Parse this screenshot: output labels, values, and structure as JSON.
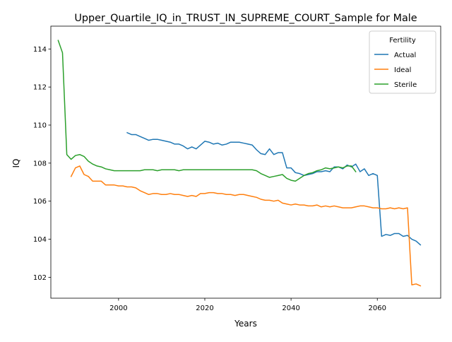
{
  "chart_data": {
    "type": "line",
    "title": "Upper_Quartile_IQ_in_TRUST_IN_SUPREME_COURT_Sample for Male",
    "xlabel": "Years",
    "ylabel": "IQ",
    "xlim": [
      1984.3,
      2074.7
    ],
    "ylim": [
      100.9,
      115.2
    ],
    "xticks": [
      2000,
      2020,
      2040,
      2060
    ],
    "yticks": [
      102,
      104,
      106,
      108,
      110,
      112,
      114
    ],
    "grid": false,
    "legend": {
      "title": "Fertility",
      "placement": "top-right"
    },
    "series": [
      {
        "name": "Actual",
        "color": "#1f77b4",
        "x": [
          2002,
          2003,
          2004,
          2005,
          2006,
          2007,
          2008,
          2009,
          2010,
          2011,
          2012,
          2013,
          2014,
          2015,
          2016,
          2017,
          2018,
          2019,
          2020,
          2021,
          2022,
          2023,
          2024,
          2025,
          2026,
          2027,
          2028,
          2029,
          2030,
          2031,
          2032,
          2033,
          2034,
          2035,
          2036,
          2037,
          2038,
          2039,
          2040,
          2041,
          2042,
          2043,
          2044,
          2045,
          2046,
          2047,
          2048,
          2049,
          2050,
          2051,
          2052,
          2053,
          2054,
          2055,
          2056,
          2057,
          2058,
          2059,
          2060,
          2061,
          2062,
          2063,
          2064,
          2065,
          2066,
          2067,
          2068,
          2069,
          2070
        ],
        "values": [
          109.6,
          109.5,
          109.5,
          109.4,
          109.3,
          109.2,
          109.25,
          109.25,
          109.2,
          109.15,
          109.1,
          109.0,
          109.0,
          108.9,
          108.75,
          108.85,
          108.75,
          108.95,
          109.15,
          109.1,
          109.0,
          109.05,
          108.95,
          109.0,
          109.1,
          109.1,
          109.1,
          109.05,
          109.0,
          108.95,
          108.7,
          108.5,
          108.45,
          108.75,
          108.45,
          108.55,
          108.55,
          107.75,
          107.75,
          107.5,
          107.45,
          107.35,
          107.4,
          107.45,
          107.55,
          107.55,
          107.6,
          107.55,
          107.8,
          107.8,
          107.7,
          107.9,
          107.8,
          107.95,
          107.55,
          107.7,
          107.35,
          107.45,
          107.35,
          104.15,
          104.25,
          104.2,
          104.3,
          104.3,
          104.15,
          104.2,
          104.0,
          103.9,
          103.7
        ]
      },
      {
        "name": "Ideal",
        "color": "#ff7f0e",
        "x": [
          1989,
          1990,
          1991,
          1992,
          1993,
          1994,
          1995,
          1996,
          1997,
          1998,
          1999,
          2000,
          2001,
          2002,
          2003,
          2004,
          2005,
          2006,
          2007,
          2008,
          2009,
          2010,
          2011,
          2012,
          2013,
          2014,
          2015,
          2016,
          2017,
          2018,
          2019,
          2020,
          2021,
          2022,
          2023,
          2024,
          2025,
          2026,
          2027,
          2028,
          2029,
          2030,
          2031,
          2032,
          2033,
          2034,
          2035,
          2036,
          2037,
          2038,
          2039,
          2040,
          2041,
          2042,
          2043,
          2044,
          2045,
          2046,
          2047,
          2048,
          2049,
          2050,
          2051,
          2052,
          2053,
          2054,
          2055,
          2056,
          2057,
          2058,
          2059,
          2060,
          2061,
          2062,
          2063,
          2064,
          2065,
          2066,
          2067,
          2068,
          2069,
          2070
        ],
        "values": [
          107.3,
          107.75,
          107.85,
          107.4,
          107.3,
          107.05,
          107.05,
          107.05,
          106.85,
          106.85,
          106.85,
          106.8,
          106.8,
          106.75,
          106.75,
          106.7,
          106.55,
          106.45,
          106.35,
          106.4,
          106.4,
          106.35,
          106.35,
          106.4,
          106.35,
          106.35,
          106.3,
          106.25,
          106.3,
          106.25,
          106.4,
          106.4,
          106.45,
          106.45,
          106.4,
          106.4,
          106.35,
          106.35,
          106.3,
          106.35,
          106.35,
          106.3,
          106.25,
          106.2,
          106.1,
          106.05,
          106.05,
          106.0,
          106.05,
          105.9,
          105.85,
          105.8,
          105.85,
          105.8,
          105.8,
          105.75,
          105.75,
          105.8,
          105.7,
          105.75,
          105.7,
          105.75,
          105.7,
          105.65,
          105.65,
          105.65,
          105.7,
          105.75,
          105.75,
          105.7,
          105.65,
          105.65,
          105.6,
          105.6,
          105.65,
          105.6,
          105.65,
          105.6,
          105.65,
          101.6,
          101.65,
          101.55
        ]
      },
      {
        "name": "Sterile",
        "color": "#2ca02c",
        "x": [
          1986,
          1987,
          1988,
          1989,
          1990,
          1991,
          1992,
          1993,
          1994,
          1995,
          1996,
          1997,
          1998,
          1999,
          2000,
          2001,
          2002,
          2003,
          2004,
          2005,
          2006,
          2007,
          2008,
          2009,
          2010,
          2011,
          2012,
          2013,
          2014,
          2015,
          2016,
          2017,
          2018,
          2019,
          2020,
          2021,
          2022,
          2023,
          2024,
          2025,
          2026,
          2027,
          2028,
          2029,
          2030,
          2031,
          2032,
          2033,
          2034,
          2035,
          2036,
          2037,
          2038,
          2039,
          2040,
          2041,
          2042,
          2043,
          2044,
          2045,
          2046,
          2047,
          2048,
          2049,
          2050,
          2051,
          2052,
          2053,
          2054,
          2055
        ],
        "values": [
          114.45,
          113.8,
          108.45,
          108.2,
          108.4,
          108.45,
          108.35,
          108.1,
          107.95,
          107.85,
          107.8,
          107.7,
          107.65,
          107.6,
          107.6,
          107.6,
          107.6,
          107.6,
          107.6,
          107.6,
          107.65,
          107.65,
          107.65,
          107.6,
          107.65,
          107.65,
          107.65,
          107.65,
          107.6,
          107.65,
          107.65,
          107.65,
          107.65,
          107.65,
          107.65,
          107.65,
          107.65,
          107.65,
          107.65,
          107.65,
          107.65,
          107.65,
          107.65,
          107.65,
          107.65,
          107.65,
          107.6,
          107.45,
          107.35,
          107.25,
          107.3,
          107.35,
          107.4,
          107.2,
          107.1,
          107.05,
          107.2,
          107.35,
          107.45,
          107.5,
          107.6,
          107.65,
          107.75,
          107.7,
          107.75,
          107.8,
          107.75,
          107.85,
          107.85,
          107.55
        ]
      }
    ]
  }
}
